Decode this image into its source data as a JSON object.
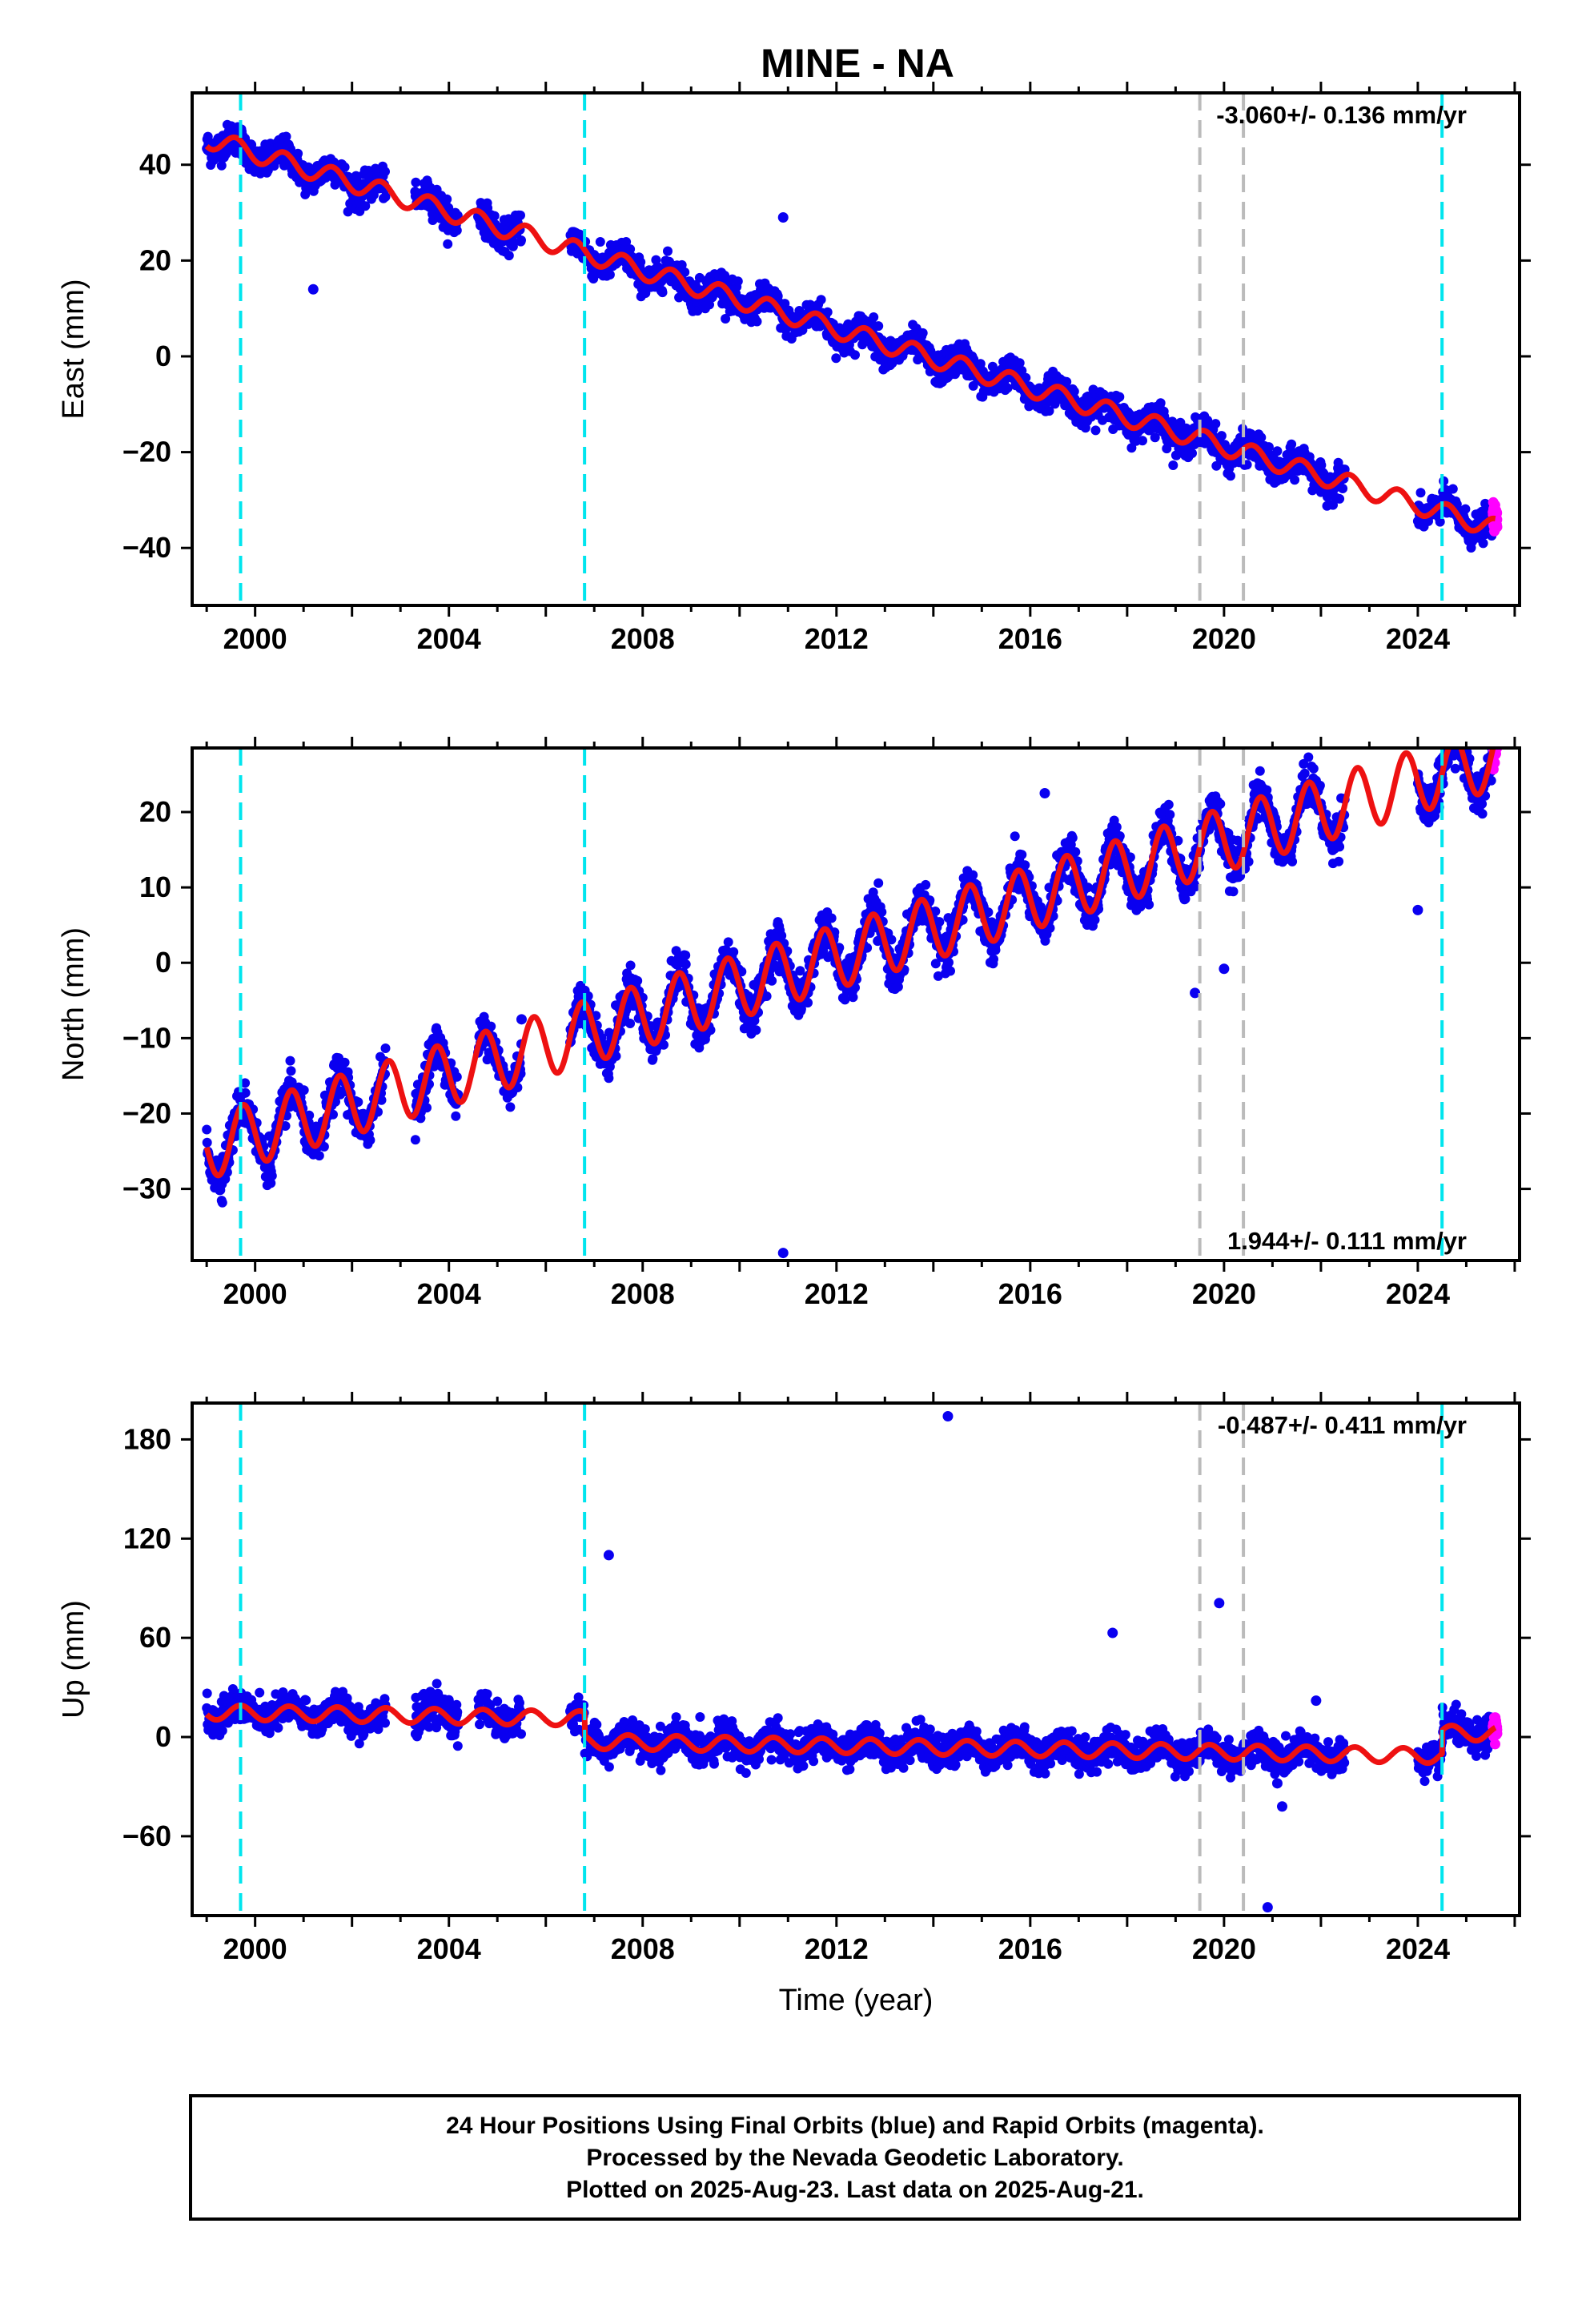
{
  "title": "MINE - NA",
  "colors": {
    "final_points": "#0a00f0",
    "rapid_points": "#ff00ff",
    "model_line": "#ee1111",
    "equipment_change": "#00e5ee",
    "other_event": "#bbbbbb",
    "frame": "#000000"
  },
  "footer": {
    "line1": "24 Hour Positions Using Final Orbits (blue) and Rapid Orbits (magenta).",
    "line2": "Processed by the Nevada Geodetic Laboratory.",
    "line3": "Plotted on 2025-Aug-23. Last data on 2025-Aug-21."
  },
  "chart_data": [
    {
      "type": "scatter",
      "component": "east",
      "ylabel": "East (mm)",
      "xlabel": "",
      "xlim": [
        1998.7,
        2026.1
      ],
      "ylim": [
        -52,
        55
      ],
      "xticks": [
        2000,
        2004,
        2008,
        2012,
        2016,
        2020,
        2024
      ],
      "yticks": [
        -40,
        -20,
        0,
        20,
        40
      ],
      "ytick_labels": [
        "−40",
        "−20",
        "0",
        "20",
        "40"
      ],
      "rate_label": "-3.060+/- 0.136 mm/yr",
      "rate_position": "top-right",
      "rate_mm_yr": -3.06,
      "trend_ref": {
        "year": 1999.0,
        "value": 45.5
      },
      "seasonal_amplitude": 2.0,
      "seasonal_phase": 0.35,
      "step_offsets": [
        {
          "year": 2006.8,
          "value": 0
        },
        {
          "year": 2024.5,
          "value": 0
        }
      ],
      "scatter_sd": 1.6,
      "data_segments": [
        [
          1999.0,
          2002.7
        ],
        [
          2003.3,
          2004.2
        ],
        [
          2004.6,
          2005.5
        ],
        [
          2006.5,
          2022.5
        ],
        [
          2024.0,
          2025.55
        ]
      ],
      "rapid_range": [
        2025.55,
        2025.64
      ],
      "outliers": [
        {
          "x": 2001.2,
          "y": 14
        },
        {
          "x": 2010.9,
          "y": 29
        }
      ],
      "equipment_changes": [
        1999.7,
        2006.8,
        2024.5
      ],
      "other_events": [
        2019.5,
        2020.4
      ]
    },
    {
      "type": "scatter",
      "component": "north",
      "ylabel": "North (mm)",
      "xlabel": "",
      "xlim": [
        1998.7,
        2026.1
      ],
      "ylim": [
        -39.5,
        28.5
      ],
      "xticks": [
        2000,
        2004,
        2008,
        2012,
        2016,
        2020,
        2024
      ],
      "yticks": [
        -30,
        -20,
        -10,
        0,
        10,
        20
      ],
      "ytick_labels": [
        "−30",
        "−20",
        "−10",
        "0",
        "10",
        "20"
      ],
      "rate_label": "1.944+/- 0.111 mm/yr",
      "rate_position": "bottom-right",
      "rate_mm_yr": 1.944,
      "trend_ref": {
        "year": 1999.0,
        "value": -24.5
      },
      "seasonal_amplitude": 4.2,
      "seasonal_phase": 0.5,
      "step_offsets": [
        {
          "year": 2006.8,
          "value": 0
        },
        {
          "year": 2024.5,
          "value": 0
        }
      ],
      "scatter_sd": 1.4,
      "data_segments": [
        [
          1999.0,
          2002.7
        ],
        [
          2003.3,
          2004.2
        ],
        [
          2004.6,
          2005.5
        ],
        [
          2006.5,
          2022.5
        ],
        [
          2024.0,
          2025.55
        ]
      ],
      "rapid_range": [
        2025.55,
        2025.64
      ],
      "outliers": [
        {
          "x": 2010.9,
          "y": -38.5
        },
        {
          "x": 2016.3,
          "y": 22.5
        },
        {
          "x": 2019.4,
          "y": -4
        },
        {
          "x": 2020.0,
          "y": -0.8
        },
        {
          "x": 2024.0,
          "y": 7
        },
        {
          "x": 2005.5,
          "y": -7.5
        }
      ],
      "equipment_changes": [
        1999.7,
        2006.8,
        2024.5
      ],
      "other_events": [
        2019.5,
        2020.4
      ]
    },
    {
      "type": "scatter",
      "component": "up",
      "ylabel": "Up (mm)",
      "xlabel": "Time (year)",
      "xlim": [
        1998.7,
        2026.1
      ],
      "ylim": [
        -108,
        202
      ],
      "xticks": [
        2000,
        2004,
        2008,
        2012,
        2016,
        2020,
        2024
      ],
      "yticks": [
        -60,
        0,
        60,
        120,
        180
      ],
      "ytick_labels": [
        "−60",
        "0",
        "60",
        "120",
        "180"
      ],
      "rate_label": "-0.487+/- 0.411 mm/yr",
      "rate_position": "top-right",
      "rate_mm_yr": -0.487,
      "trend_ref": {
        "year": 1999.0,
        "value": 15.0
      },
      "seasonal_amplitude": 4.5,
      "seasonal_phase": 0.45,
      "step_offsets": [
        {
          "year": 2006.8,
          "value": -14
        },
        {
          "year": 2024.5,
          "value": 14
        }
      ],
      "scatter_sd": 4.8,
      "data_segments": [
        [
          1999.0,
          2002.7
        ],
        [
          2003.3,
          2004.2
        ],
        [
          2004.6,
          2005.5
        ],
        [
          2006.5,
          2022.5
        ],
        [
          2024.0,
          2025.55
        ]
      ],
      "rapid_range": [
        2025.55,
        2025.64
      ],
      "outliers": [
        {
          "x": 2007.3,
          "y": 110
        },
        {
          "x": 2014.3,
          "y": 194
        },
        {
          "x": 2017.7,
          "y": 63
        },
        {
          "x": 2019.9,
          "y": 81
        },
        {
          "x": 2020.9,
          "y": -103
        },
        {
          "x": 2021.2,
          "y": -42
        },
        {
          "x": 2021.1,
          "y": -28
        },
        {
          "x": 2021.9,
          "y": 22
        }
      ],
      "equipment_changes": [
        1999.7,
        2006.8,
        2024.5
      ],
      "other_events": [
        2019.5,
        2020.4
      ]
    }
  ]
}
